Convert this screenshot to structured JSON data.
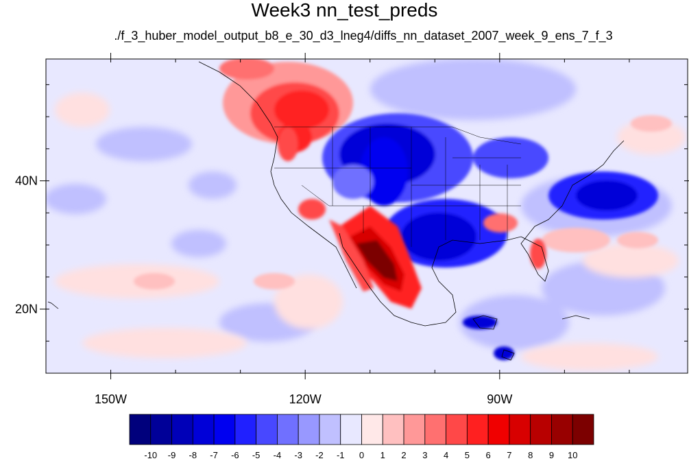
{
  "title": "Week3 nn_test_preds",
  "subtitle": "./f_3_huber_model_output_b8_e_30_d3_lneg4/diffs_nn_dataset_2007_week_9_ens_7_f_3",
  "map": {
    "projection": "cylindrical equidistant",
    "lon_range": [
      -160,
      -61
    ],
    "lat_range": [
      10,
      59
    ],
    "lon_ticks": [
      {
        "value": -150,
        "label": "150W"
      },
      {
        "value": -120,
        "label": "120W"
      },
      {
        "value": -90,
        "label": "90W"
      }
    ],
    "lat_ticks": [
      {
        "value": 40,
        "label": "40N"
      },
      {
        "value": 20,
        "label": "20N"
      }
    ]
  },
  "colorbar": {
    "levels": [
      "-10",
      "-9",
      "-8",
      "-7",
      "-6",
      "-5",
      "-4",
      "-3",
      "-2",
      "-1",
      "0",
      "1",
      "2",
      "3",
      "4",
      "5",
      "6",
      "7",
      "8",
      "9",
      "10"
    ],
    "colors": [
      "#00007c",
      "#000098",
      "#0000b8",
      "#0000d8",
      "#0000f0",
      "#2020ff",
      "#4848ff",
      "#7070ff",
      "#9898ff",
      "#c0c0ff",
      "#e8e8ff",
      "#ffe8e8",
      "#ffc0c0",
      "#ff9898",
      "#ff7070",
      "#ff4848",
      "#ff2020",
      "#f00000",
      "#d80000",
      "#b80000",
      "#980000",
      "#7c0000"
    ]
  },
  "colors": {
    "background_field": "#e8e8ff",
    "strong_positive": "#7c0000",
    "strong_negative": "#0000b8"
  }
}
